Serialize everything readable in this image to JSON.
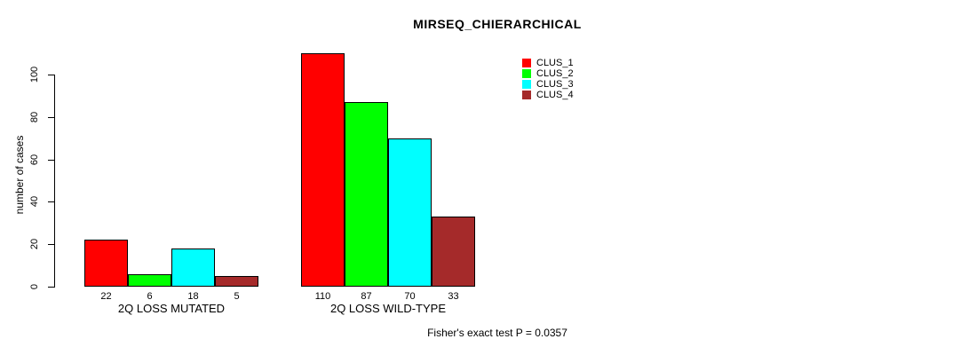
{
  "chart_data": {
    "type": "bar",
    "title": "MIRSEQ_CHIERARCHICAL",
    "xlabel": "",
    "ylabel": "number of cases",
    "categories": [
      "2Q LOSS MUTATED",
      "2Q LOSS WILD-TYPE"
    ],
    "series": [
      {
        "name": "CLUS_1",
        "color": "#ff0000",
        "values": [
          22,
          110
        ]
      },
      {
        "name": "CLUS_2",
        "color": "#00ff00",
        "values": [
          6,
          87
        ]
      },
      {
        "name": "CLUS_3",
        "color": "#00ffff",
        "values": [
          18,
          70
        ]
      },
      {
        "name": "CLUS_4",
        "color": "#a52a2a",
        "values": [
          5,
          33
        ]
      }
    ],
    "yticks": [
      0,
      20,
      40,
      60,
      80,
      100
    ],
    "ylim": [
      0,
      110
    ],
    "grid": false,
    "bar_value_labels_shown": true,
    "legend_position": "top-right",
    "annotation": "Fisher's exact test P = 0.0357"
  }
}
